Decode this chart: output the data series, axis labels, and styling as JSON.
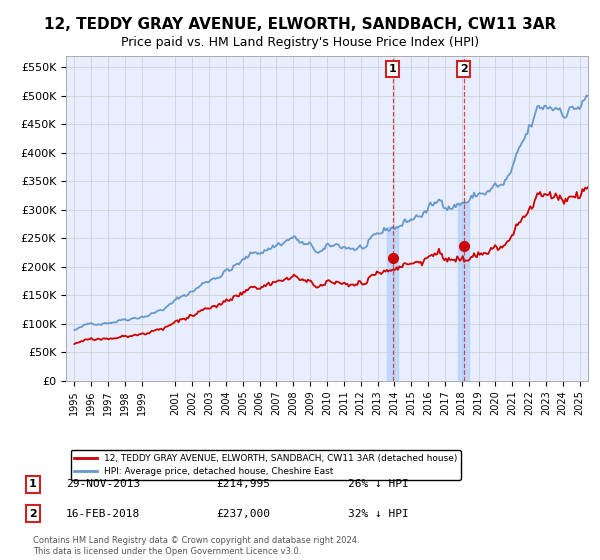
{
  "title": "12, TEDDY GRAY AVENUE, ELWORTH, SANDBACH, CW11 3AR",
  "subtitle": "Price paid vs. HM Land Registry's House Price Index (HPI)",
  "title_fontsize": 11,
  "subtitle_fontsize": 9,
  "bg_color": "#ffffff",
  "plot_bg_color": "#e8eeff",
  "grid_color": "#cccccc",
  "hpi_color": "#6699cc",
  "price_color": "#cc0000",
  "marker_color": "#cc0000",
  "annotation_box_color": "#cc2222",
  "legend_label_red": "12, TEDDY GRAY AVENUE, ELWORTH, SANDBACH, CW11 3AR (detached house)",
  "legend_label_blue": "HPI: Average price, detached house, Cheshire East",
  "sale1_date": "29-NOV-2013",
  "sale1_price": "£214,995",
  "sale1_pct": "26% ↓ HPI",
  "sale1_x": 2013.91,
  "sale1_y": 214995,
  "sale2_date": "16-FEB-2018",
  "sale2_price": "£237,000",
  "sale2_pct": "32% ↓ HPI",
  "sale2_x": 2018.12,
  "sale2_y": 237000,
  "ylim": [
    0,
    570000
  ],
  "xlim": [
    1994.5,
    2025.5
  ],
  "yticks": [
    0,
    50000,
    100000,
    150000,
    200000,
    250000,
    300000,
    350000,
    400000,
    450000,
    500000,
    550000
  ],
  "xticks": [
    1995,
    1996,
    1997,
    1998,
    1999,
    2001,
    2002,
    2003,
    2004,
    2005,
    2006,
    2007,
    2008,
    2009,
    2010,
    2011,
    2012,
    2013,
    2014,
    2015,
    2016,
    2017,
    2018,
    2019,
    2020,
    2021,
    2022,
    2023,
    2024,
    2025
  ],
  "footer": "Contains HM Land Registry data © Crown copyright and database right 2024.\nThis data is licensed under the Open Government Licence v3.0."
}
